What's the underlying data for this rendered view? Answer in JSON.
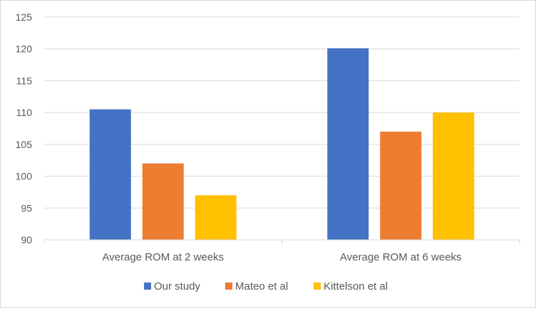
{
  "chart_data": {
    "type": "bar",
    "categories": [
      "Average ROM at 2 weeks",
      "Average ROM at 6 weeks"
    ],
    "series": [
      {
        "name": "Our study",
        "values": [
          110.5,
          120.1
        ],
        "color": "#4472C4"
      },
      {
        "name": "Mateo et al",
        "values": [
          102,
          107
        ],
        "color": "#ED7D31"
      },
      {
        "name": "Kittelson et al",
        "values": [
          97,
          110
        ],
        "color": "#FFC000"
      }
    ],
    "title": "",
    "xlabel": "",
    "ylabel": "",
    "ylim": [
      90,
      125
    ],
    "yticks": [
      90,
      95,
      100,
      105,
      110,
      115,
      120,
      125
    ],
    "grid": true,
    "legend_position": "bottom",
    "gridline_color": "#d9d9d9"
  }
}
